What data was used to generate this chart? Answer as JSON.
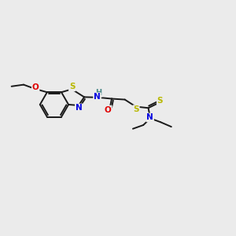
{
  "background_color": "#ebebeb",
  "bond_color": "#1a1a1a",
  "atom_colors": {
    "S": "#b8b800",
    "N": "#0000e0",
    "O": "#e00000",
    "H": "#4a8888",
    "C": "#1a1a1a"
  },
  "figsize": [
    3.0,
    3.0
  ],
  "dpi": 100
}
